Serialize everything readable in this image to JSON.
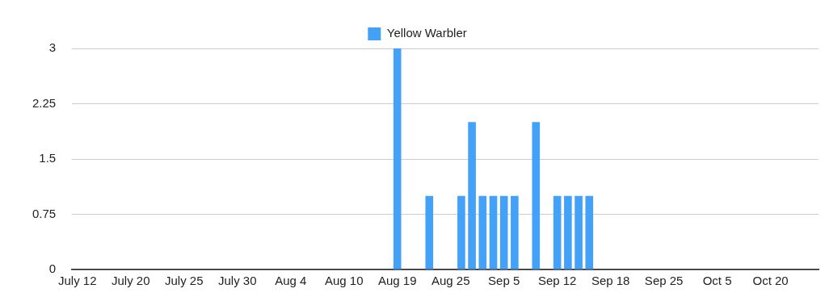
{
  "chart_data": {
    "type": "bar",
    "categories": [
      "July 12",
      null,
      null,
      null,
      null,
      "July 20",
      null,
      null,
      null,
      null,
      "July 25",
      null,
      null,
      null,
      null,
      "July 30",
      null,
      null,
      null,
      null,
      "Aug 4",
      null,
      null,
      null,
      null,
      "Aug 10",
      null,
      null,
      null,
      null,
      "Aug 19",
      null,
      null,
      null,
      null,
      "Aug 25",
      null,
      null,
      null,
      null,
      "Sep 5",
      null,
      null,
      null,
      null,
      "Sep 12",
      null,
      null,
      null,
      null,
      "Sep 18",
      null,
      null,
      null,
      null,
      "Sep 25",
      null,
      null,
      null,
      null,
      "Oct 5",
      null,
      null,
      null,
      null,
      "Oct 20",
      null,
      null,
      null,
      null
    ],
    "series": [
      {
        "name": "Yellow Warbler",
        "color": "#44a1f8",
        "values": [
          0,
          0,
          0,
          0,
          0,
          0,
          0,
          0,
          0,
          0,
          0,
          0,
          0,
          0,
          0,
          0,
          0,
          0,
          0,
          0,
          0,
          0,
          0,
          0,
          0,
          0,
          0,
          0,
          0,
          0,
          3,
          0,
          0,
          1,
          0,
          0,
          1,
          2,
          1,
          1,
          1,
          1,
          0,
          2,
          0,
          1,
          1,
          1,
          1,
          0,
          0,
          0,
          0,
          0,
          0,
          0,
          0,
          0,
          0,
          0,
          0,
          0,
          0,
          0,
          0,
          0,
          0,
          0,
          0,
          0
        ]
      }
    ],
    "ylim": [
      0,
      3
    ],
    "yticks": [
      0,
      0.75,
      1.5,
      2.25,
      3
    ],
    "grid": "y",
    "legend": "top"
  }
}
